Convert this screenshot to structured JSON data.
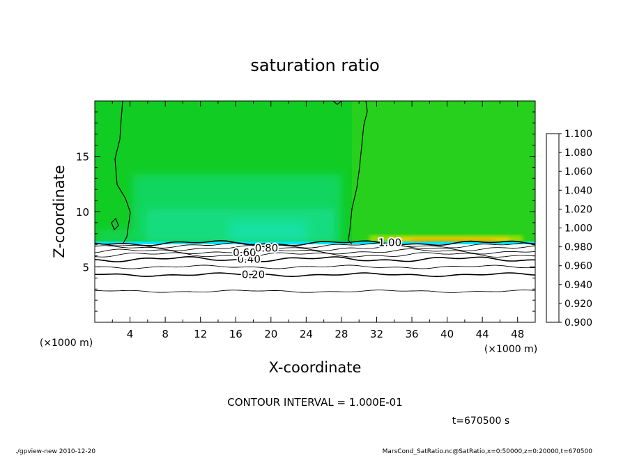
{
  "chart_data": {
    "type": "heatmap",
    "title": "saturation ratio",
    "xlabel": "X-coordinate",
    "ylabel": "Z-coordinate",
    "x_unit_label": "(×1000 m)",
    "y_unit_label": "(×1000 m)",
    "xlim": [
      0,
      50
    ],
    "ylim": [
      0,
      20
    ],
    "x_ticks": [
      4,
      8,
      12,
      16,
      20,
      24,
      28,
      32,
      36,
      40,
      44,
      48
    ],
    "y_ticks": [
      5,
      10,
      15
    ],
    "colorbar": {
      "min": 0.9,
      "max": 1.1,
      "labels": [
        "0.900",
        "0.920",
        "0.940",
        "0.960",
        "0.980",
        "1.000",
        "1.020",
        "1.040",
        "1.060",
        "1.080",
        "1.100"
      ],
      "colors": [
        "#6a0dad",
        "#00008b",
        "#0000ff",
        "#0080ff",
        "#00e5ff",
        "#00e0a0",
        "#11dd22",
        "#9bdd00",
        "#ffd000",
        "#ff7a00",
        "#ff2a2a",
        "#ff9090"
      ]
    },
    "contour_interval_text": "CONTOUR INTERVAL = 1.000E-01",
    "contour_labels": [
      {
        "text": "0.20",
        "x": 18,
        "z": 4.3
      },
      {
        "text": "0.40",
        "x": 17.5,
        "z": 5.7
      },
      {
        "text": "0.60",
        "x": 17,
        "z": 6.3
      },
      {
        "text": "0.80",
        "x": 19.5,
        "z": 6.7
      },
      {
        "text": "1.00",
        "x": 33.5,
        "z": 7.2
      }
    ],
    "contour_levels_z": [
      2.8,
      4.3,
      5.0,
      5.7,
      6.1,
      6.4,
      6.7,
      6.95
    ],
    "boundary_z": 7.15
  },
  "footer": {
    "time": "t=670500 s",
    "left": "./gpview-new 2010-12-20",
    "right": "MarsCond_SatRatio.nc@SatRatio,x=0:50000,z=0:20000,t=670500"
  }
}
